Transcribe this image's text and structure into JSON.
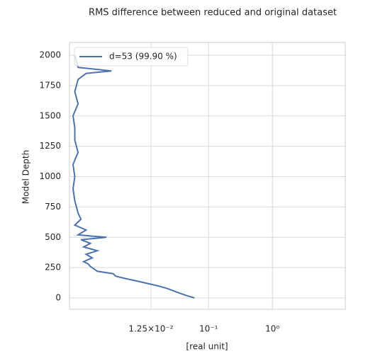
{
  "chart_data": {
    "type": "line",
    "title": "RMS difference between reduced and original dataset",
    "xlabel": "[real unit]",
    "ylabel": "Model Depth",
    "xscale": "log",
    "grid": true,
    "legend": "upper left",
    "xlim": [
      0.00066,
      13.9
    ],
    "ylim": [
      -93,
      2105
    ],
    "xticks": [
      {
        "value": 0.0125,
        "label": "1.25×10⁻²"
      },
      {
        "value": 0.1,
        "label": "10⁻¹"
      },
      {
        "value": 1,
        "label": "10⁰"
      }
    ],
    "yticks": [
      0,
      250,
      500,
      750,
      1000,
      1250,
      1500,
      1750,
      2000
    ],
    "depth": [
      0,
      20,
      40,
      60,
      80,
      100,
      120,
      140,
      160,
      180,
      200,
      220,
      240,
      260,
      280,
      300,
      330,
      360,
      390,
      420,
      450,
      480,
      500,
      520,
      560,
      600,
      650,
      700,
      800,
      900,
      1000,
      1100,
      1200,
      1300,
      1400,
      1500,
      1600,
      1700,
      1800,
      1850,
      1870,
      1900,
      2000
    ],
    "series": [
      {
        "name": "d=53 (99.90 %)",
        "color": "#4c72b0",
        "values": [
          0.06,
          0.045,
          0.035,
          0.028,
          0.022,
          0.016,
          0.011,
          0.0075,
          0.005,
          0.0035,
          0.0032,
          0.0018,
          0.0016,
          0.0014,
          0.0013,
          0.0011,
          0.0015,
          0.0012,
          0.0018,
          0.0011,
          0.0014,
          0.001,
          0.0025,
          0.0009,
          0.0012,
          0.0008,
          0.001,
          0.0009,
          0.0008,
          0.00075,
          0.0008,
          0.00075,
          0.0009,
          0.0008,
          0.0008,
          0.00075,
          0.0009,
          0.0008,
          0.0009,
          0.0012,
          0.003,
          0.0009,
          0.0008
        ]
      }
    ]
  }
}
